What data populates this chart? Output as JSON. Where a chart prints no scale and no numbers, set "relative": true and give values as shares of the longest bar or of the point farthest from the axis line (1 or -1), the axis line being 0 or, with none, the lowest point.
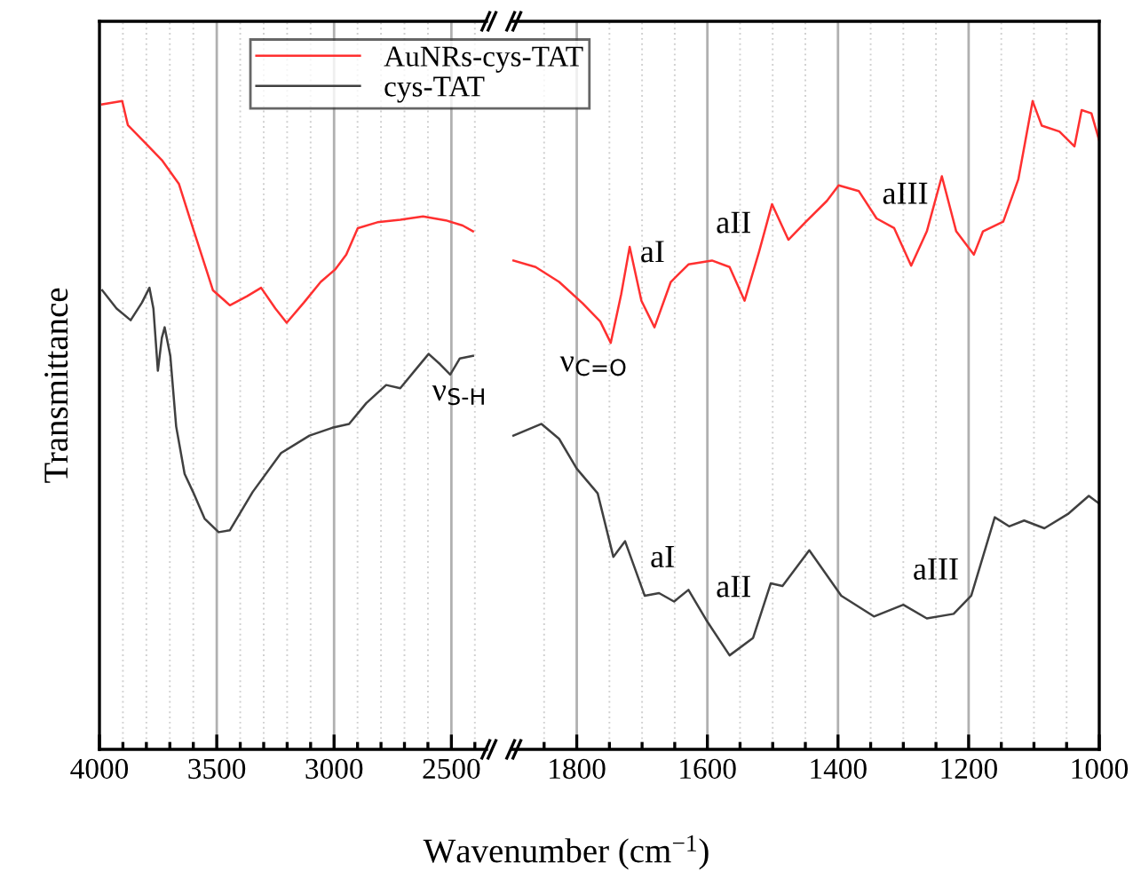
{
  "chart_data": [
    {
      "type": "line",
      "relative": true,
      "ylabel": "Transmittance",
      "xlabel": "Wavenumber (cm$^{−1}$)",
      "xlim": [
        4000,
        2350
      ],
      "xticks": [
        4000,
        {
          "value": 3900,
          "label": null
        },
        {
          "value": 3800,
          "label": null
        },
        {
          "value": 3700,
          "label": null
        },
        {
          "value": 3600,
          "label": null
        },
        3500,
        {
          "value": 3400,
          "label": null
        },
        {
          "value": 3300,
          "label": null
        },
        {
          "value": 3200,
          "label": null
        },
        {
          "value": 3100,
          "label": null
        },
        3000,
        {
          "value": 2900,
          "label": null
        },
        {
          "value": 2800,
          "label": null
        },
        {
          "value": 2700,
          "label": null
        },
        {
          "value": 2600,
          "label": null
        },
        2500,
        {
          "value": 2400,
          "label": null
        }
      ],
      "tick_labels": "x",
      "grid": "x",
      "legend": "top",
      "line_style": "solid",
      "marker": "none",
      "series": [
        {
          "name": "AuNRs-cys-TAT",
          "color": "#ff3030",
          "x": [
            3988,
            3903,
            3879,
            3806,
            3734,
            3661,
            3613,
            3565,
            3516,
            3444,
            3371,
            3311,
            3250,
            3202,
            3129,
            3057,
            2996,
            2948,
            2899,
            2815,
            2718,
            2621,
            2524,
            2452,
            2408
          ],
          "values": [
            0.995,
            1.0,
            0.963,
            0.936,
            0.909,
            0.872,
            0.817,
            0.763,
            0.708,
            0.685,
            0.699,
            0.712,
            0.68,
            0.658,
            0.689,
            0.721,
            0.74,
            0.763,
            0.804,
            0.813,
            0.817,
            0.822,
            0.816,
            0.808,
            0.799
          ]
        },
        {
          "name": "cys-TAT",
          "color": "#404040",
          "x": [
            3988,
            3927,
            3867,
            3819,
            3787,
            3770,
            3751,
            3734,
            3722,
            3698,
            3673,
            3637,
            3601,
            3552,
            3492,
            3444,
            3347,
            3226,
            3105,
            3008,
            2936,
            2863,
            2778,
            2718,
            2645,
            2597,
            2548,
            2505,
            2464,
            2408
          ],
          "values": [
            0.708,
            0.68,
            0.662,
            0.689,
            0.712,
            0.68,
            0.584,
            0.635,
            0.651,
            0.607,
            0.498,
            0.425,
            0.397,
            0.356,
            0.335,
            0.338,
            0.397,
            0.457,
            0.484,
            0.496,
            0.502,
            0.534,
            0.562,
            0.557,
            0.589,
            0.61,
            0.594,
            0.578,
            0.603,
            0.607
          ]
        }
      ],
      "annotations": [
        "ν$_{S-H}$"
      ]
    },
    {
      "type": "line",
      "relative": true,
      "xlim": [
        1900,
        1000
      ],
      "xticks": [
        {
          "value": 1850,
          "label": null
        },
        1800,
        {
          "value": 1750,
          "label": null
        },
        {
          "value": 1700,
          "label": null
        },
        {
          "value": 1650,
          "label": null
        },
        1600,
        {
          "value": 1550,
          "label": null
        },
        {
          "value": 1500,
          "label": null
        },
        {
          "value": 1450,
          "label": null
        },
        1400,
        {
          "value": 1350,
          "label": null
        },
        {
          "value": 1300,
          "label": null
        },
        {
          "value": 1250,
          "label": null
        },
        1200,
        {
          "value": 1150,
          "label": null
        },
        {
          "value": 1100,
          "label": null
        },
        {
          "value": 1050,
          "label": null
        },
        1000
      ],
      "tick_labels": "x",
      "grid": "x",
      "line_style": "solid",
      "marker": "none",
      "series": [
        {
          "color": "#ff3030",
          "x": [
            1897,
            1863,
            1827,
            1791,
            1764,
            1748,
            1732,
            1719,
            1701,
            1681,
            1656,
            1629,
            1593,
            1566,
            1543,
            1521,
            1501,
            1476,
            1449,
            1417,
            1399,
            1368,
            1341,
            1314,
            1288,
            1264,
            1241,
            1219,
            1192,
            1178,
            1147,
            1124,
            1102,
            1088,
            1061,
            1038,
            1027,
            1012,
            1000
          ],
          "values": [
            0.754,
            0.744,
            0.721,
            0.688,
            0.66,
            0.627,
            0.702,
            0.775,
            0.692,
            0.651,
            0.721,
            0.748,
            0.754,
            0.744,
            0.692,
            0.767,
            0.841,
            0.786,
            0.814,
            0.846,
            0.87,
            0.861,
            0.819,
            0.804,
            0.746,
            0.799,
            0.884,
            0.799,
            0.763,
            0.799,
            0.814,
            0.879,
            1.0,
            0.962,
            0.953,
            0.93,
            0.986,
            0.981,
            0.939
          ]
        },
        {
          "color": "#404040",
          "x": [
            1897,
            1854,
            1827,
            1800,
            1768,
            1744,
            1726,
            1696,
            1674,
            1651,
            1629,
            1602,
            1566,
            1530,
            1503,
            1485,
            1444,
            1395,
            1345,
            1300,
            1264,
            1223,
            1196,
            1160,
            1138,
            1115,
            1084,
            1048,
            1016,
            1000
          ],
          "values": [
            0.484,
            0.502,
            0.479,
            0.433,
            0.395,
            0.297,
            0.321,
            0.237,
            0.241,
            0.228,
            0.246,
            0.2,
            0.145,
            0.172,
            0.256,
            0.252,
            0.307,
            0.237,
            0.205,
            0.223,
            0.202,
            0.209,
            0.237,
            0.358,
            0.344,
            0.353,
            0.341,
            0.363,
            0.391,
            0.379
          ]
        }
      ],
      "annotations": [
        "ν$_{C=O}$",
        "aI",
        "aII",
        "aIII",
        "aI",
        "aII",
        "aIII"
      ]
    }
  ]
}
